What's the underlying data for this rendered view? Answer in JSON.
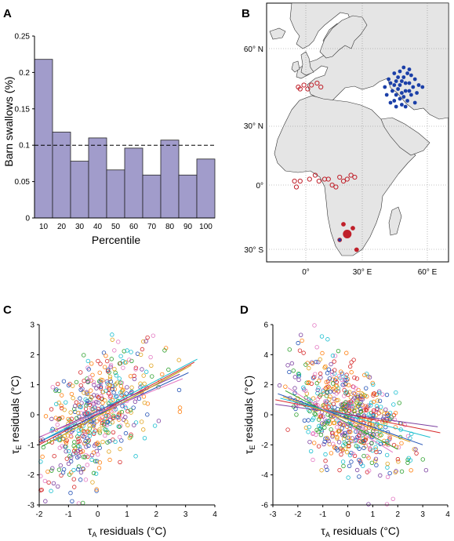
{
  "panels": {
    "A": {
      "letter": "A",
      "chart_data": {
        "type": "bar",
        "categories": [
          "10",
          "20",
          "30",
          "40",
          "50",
          "60",
          "70",
          "80",
          "90",
          "100"
        ],
        "values": [
          0.218,
          0.118,
          0.078,
          0.11,
          0.066,
          0.096,
          0.059,
          0.107,
          0.059,
          0.081
        ],
        "reference_line": 0.1,
        "ylim": [
          0,
          0.25
        ],
        "yticks": [
          0,
          0.05,
          0.1,
          0.15,
          0.2,
          0.25
        ],
        "ytick_labels": [
          "0",
          "0.05",
          "0.1",
          "0.15",
          "0.2",
          "0.25"
        ],
        "xlabel": "Percentile",
        "ylabel": "Barn swallows (%)",
        "bar_color": "#a19ccb"
      }
    },
    "B": {
      "letter": "B",
      "map": {
        "lat_labels": [
          "60° N",
          "30° N",
          "0°",
          "30° S"
        ],
        "lon_labels": [
          "0°",
          "30° E",
          "60° E"
        ],
        "land_color": "#e5e5e5",
        "breeding_color": "#1b3fa8",
        "wintering_color": "#c0202a",
        "breeding_sites": [
          [
            52,
            60
          ],
          [
            55,
            59
          ],
          [
            50,
            58
          ],
          [
            47,
            57
          ],
          [
            54,
            57
          ],
          [
            56,
            56
          ],
          [
            49,
            55
          ],
          [
            52,
            55
          ],
          [
            44,
            54
          ],
          [
            58,
            54
          ],
          [
            48,
            53
          ],
          [
            51,
            53
          ],
          [
            53,
            52
          ],
          [
            55,
            52
          ],
          [
            45,
            52
          ],
          [
            60,
            51
          ],
          [
            47,
            51
          ],
          [
            50,
            51
          ],
          [
            57,
            50
          ],
          [
            62,
            50
          ],
          [
            42,
            50
          ],
          [
            49,
            49
          ],
          [
            53,
            48
          ],
          [
            55,
            48
          ],
          [
            46,
            48
          ],
          [
            59,
            47
          ],
          [
            51,
            47
          ],
          [
            48,
            46
          ],
          [
            56,
            46
          ],
          [
            43,
            46
          ],
          [
            52,
            45
          ],
          [
            50,
            44
          ],
          [
            47,
            43
          ],
          [
            54,
            43
          ],
          [
            45,
            42
          ],
          [
            58,
            42
          ],
          [
            51,
            41
          ],
          [
            48,
            40
          ],
          [
            53,
            40
          ]
        ],
        "wintering_sites": [
          [
            -4,
            50
          ],
          [
            -1,
            51
          ],
          [
            1,
            49
          ],
          [
            3,
            51
          ],
          [
            6,
            52
          ],
          [
            8,
            50
          ],
          [
            -3,
            49
          ],
          [
            -6,
            2
          ],
          [
            -3,
            2
          ],
          [
            -5,
            -1
          ],
          [
            2,
            3
          ],
          [
            5,
            5
          ],
          [
            7,
            2
          ],
          [
            10,
            3
          ],
          [
            12,
            3
          ],
          [
            14,
            0
          ],
          [
            16,
            -1
          ],
          [
            20,
            2
          ],
          [
            22,
            3
          ],
          [
            24,
            5
          ],
          [
            26,
            4
          ],
          [
            18,
            4
          ],
          [
            20,
            -20
          ],
          [
            22,
            -25
          ],
          [
            18,
            -28
          ],
          [
            25,
            -22
          ],
          [
            27,
            -33
          ]
        ]
      }
    },
    "C": {
      "letter": "C",
      "chart_data": {
        "type": "scatter",
        "xlim": [
          -2,
          4
        ],
        "ylim": [
          -3,
          3
        ],
        "xticks": [
          -2,
          -1,
          0,
          1,
          2,
          3,
          4
        ],
        "yticks": [
          -3,
          -2,
          -1,
          0,
          1,
          2,
          3
        ],
        "xtick_labels": [
          "-2",
          "-1",
          "0",
          "1",
          "2",
          "3",
          "4"
        ],
        "ytick_labels": [
          "-3",
          "-2",
          "-1",
          "0",
          "1",
          "2",
          "3"
        ],
        "xlabel": {
          "main": "τ",
          "sub": "A",
          "rest": " residuals (°C)"
        },
        "ylabel": {
          "main": "τ",
          "sub": "E",
          "rest": " residuals (°C)"
        },
        "point_colors": [
          "#d62728",
          "#1f4fb4",
          "#2ca02c",
          "#e0a21b",
          "#7b3fa0",
          "#17becf",
          "#e377c2",
          "#ff7f0e"
        ],
        "trend_lines": [
          {
            "x1": -2.0,
            "y1": -1.0,
            "x2": 3.3,
            "y2": 1.75,
            "color": "#d62728"
          },
          {
            "x1": -2.0,
            "y1": -0.9,
            "x2": 3.1,
            "y2": 1.4,
            "color": "#1f4fb4"
          },
          {
            "x1": -1.8,
            "y1": -0.8,
            "x2": 3.4,
            "y2": 1.85,
            "color": "#17becf"
          },
          {
            "x1": -1.9,
            "y1": -1.05,
            "x2": 3.0,
            "y2": 1.55,
            "color": "#2ca02c"
          },
          {
            "x1": -2.0,
            "y1": -0.75,
            "x2": 2.8,
            "y2": 1.35,
            "color": "#7b3fa0"
          },
          {
            "x1": -1.7,
            "y1": -0.95,
            "x2": 3.2,
            "y2": 1.65,
            "color": "#e0a21b"
          },
          {
            "x1": -1.9,
            "y1": -0.7,
            "x2": 2.9,
            "y2": 1.2,
            "color": "#e377c2"
          }
        ]
      }
    },
    "D": {
      "letter": "D",
      "chart_data": {
        "type": "scatter",
        "xlim": [
          -3,
          4
        ],
        "ylim": [
          -6,
          6
        ],
        "xticks": [
          -3,
          -2,
          -1,
          0,
          1,
          2,
          3,
          4
        ],
        "yticks": [
          -6,
          -4,
          -2,
          0,
          2,
          4,
          6
        ],
        "xtick_labels": [
          "-3",
          "-2",
          "-1",
          "0",
          "1",
          "2",
          "3",
          "4"
        ],
        "ytick_labels": [
          "-6",
          "-4",
          "-2",
          "0",
          "2",
          "4",
          "6"
        ],
        "xlabel": {
          "main": "τ",
          "sub": "A",
          "rest": " residuals (°C)"
        },
        "ylabel": {
          "main": "τ",
          "sub": "E",
          "rest": " residuals (°C)"
        },
        "point_colors": [
          "#d62728",
          "#1f4fb4",
          "#2ca02c",
          "#e0a21b",
          "#7b3fa0",
          "#17becf",
          "#e377c2",
          "#ff7f0e"
        ],
        "trend_lines": [
          {
            "x1": -2.9,
            "y1": 1.0,
            "x2": 3.7,
            "y2": -1.2,
            "color": "#d62728"
          },
          {
            "x1": -2.8,
            "y1": 1.4,
            "x2": 3.0,
            "y2": -2.0,
            "color": "#1f4fb4"
          },
          {
            "x1": -2.5,
            "y1": 1.6,
            "x2": 2.0,
            "y2": -2.3,
            "color": "#2ca02c"
          },
          {
            "x1": -2.9,
            "y1": 0.7,
            "x2": 3.6,
            "y2": -0.8,
            "color": "#7b3fa0"
          },
          {
            "x1": -2.6,
            "y1": 1.2,
            "x2": 2.5,
            "y2": -1.8,
            "color": "#e0a21b"
          },
          {
            "x1": -2.7,
            "y1": 1.1,
            "x2": 3.3,
            "y2": -1.5,
            "color": "#17becf"
          },
          {
            "x1": -2.4,
            "y1": 1.8,
            "x2": 1.8,
            "y2": -2.5,
            "color": "#e377c2"
          }
        ]
      }
    }
  }
}
